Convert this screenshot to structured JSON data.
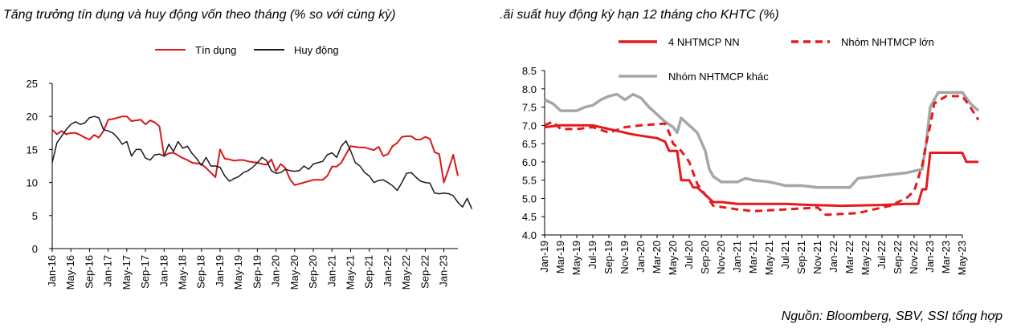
{
  "source": "Nguồn:  Bloomberg, SBV, SSI tổng hợp",
  "chart_data": [
    {
      "type": "line",
      "title": "Tăng trưởng tín dụng và huy động vốn theo tháng (% so với cùng kỳ)",
      "ylim": [
        0,
        25
      ],
      "yticks": [
        "0",
        "5",
        "10",
        "15",
        "20",
        "25"
      ],
      "x_tick_labels": [
        "Jan-16",
        "May-16",
        "Sep-16",
        "Jan-17",
        "May-17",
        "Sep-17",
        "Jan-18",
        "May-18",
        "Sep-18",
        "Jan-19",
        "May-19",
        "Sep-19",
        "Jan-20",
        "May-20",
        "Sep-20",
        "Jan-21",
        "May-21",
        "Sep-21",
        "Jan-22",
        "May-22",
        "Sep-22",
        "Jan-23"
      ],
      "x_start": "Jan-16",
      "legend_position": "top-right",
      "series": [
        {
          "name": "Tín dụng",
          "color": "#d7191c",
          "values": [
            18,
            17.3,
            17.8,
            17.3,
            17.5,
            17.5,
            17.2,
            16.8,
            16.5,
            17.2,
            16.8,
            17.8,
            19.5,
            19.6,
            19.8,
            20,
            20,
            19.3,
            19.4,
            19.5,
            18.8,
            19.4,
            19.1,
            18.5,
            14,
            14.4,
            14.5,
            14.1,
            13.7,
            13.4,
            13,
            12.9,
            12.8,
            12.2,
            11.5,
            10.8,
            15,
            13.6,
            13.5,
            13.3,
            13.4,
            13.4,
            13.2,
            13.1,
            13,
            12.8,
            12.7,
            13.5,
            11.7,
            12.8,
            12.2,
            10.5,
            9.6,
            9.8,
            10,
            10.2,
            10.4,
            10.4,
            10.4,
            11,
            12.4,
            12.4,
            13,
            14.3,
            15.5,
            15.4,
            15.3,
            15.3,
            15.1,
            14.9,
            15.4,
            14,
            14.3,
            15.5,
            16,
            16.9,
            17,
            17,
            16.5,
            16.5,
            16.9,
            16.6,
            14.6,
            14.3,
            10,
            12,
            14.2,
            11
          ]
        },
        {
          "name": "Huy động",
          "color": "#1a1a1a",
          "values": [
            13,
            16,
            17,
            18,
            18.8,
            19.2,
            18.8,
            19,
            19.8,
            20,
            19.8,
            18,
            17.8,
            17.5,
            16.8,
            15.8,
            16.2,
            14,
            15,
            15,
            13.7,
            13.4,
            14.2,
            14.3,
            14,
            15.8,
            14.7,
            16.2,
            15.2,
            15.5,
            14.4,
            13.6,
            12.6,
            13.8,
            12.5,
            12.5,
            12.3,
            11,
            10.2,
            10.6,
            10.9,
            11.5,
            11.8,
            12.3,
            13,
            13.8,
            13.3,
            11.8,
            11.4,
            11.5,
            12,
            11.8,
            11.7,
            11.8,
            12.5,
            12,
            12.8,
            13,
            13.2,
            14.2,
            14.5,
            13.8,
            15.5,
            16.3,
            14.8,
            13,
            12.5,
            11.5,
            11,
            10,
            10.3,
            10.4,
            10,
            9.5,
            8.8,
            10,
            11.4,
            11.5,
            10.8,
            10.2,
            10,
            9.9,
            8.4,
            8.3,
            8.4,
            8.3,
            8,
            7,
            6.3,
            7.6,
            6
          ]
        }
      ]
    },
    {
      "type": "line",
      "title": ".ãi suất huy động kỳ hạn 12 tháng cho KHTC (%)",
      "ylim": [
        4.0,
        8.5
      ],
      "yticks": [
        "4.0",
        "4.5",
        "5.0",
        "5.5",
        "6.0",
        "6.5",
        "7.0",
        "7.5",
        "8.0",
        "8.5"
      ],
      "x_tick_labels": [
        "Jan-19",
        "Mar-19",
        "May-19",
        "Jul-19",
        "Sep-19",
        "Nov-19",
        "Jan-20",
        "Mar-20",
        "May-20",
        "Jul-20",
        "Sep-20",
        "Nov-20",
        "Jan-21",
        "Mar-21",
        "May-21",
        "Jul-21",
        "Sep-21",
        "Nov-21",
        "Jan-22",
        "Mar-22",
        "May-22",
        "Jul-22",
        "Sep-22",
        "Nov-22",
        "Jan-23",
        "Mar-23",
        "May-23"
      ],
      "x_start": "Jan-19",
      "legend_position": "top",
      "series": [
        {
          "name": "4 NHTMCP NN",
          "color": "#e41a1c",
          "style": "solid",
          "points": [
            [
              0,
              6.95
            ],
            [
              2,
              7.0
            ],
            [
              6,
              7.0
            ],
            [
              9,
              6.85
            ],
            [
              11,
              6.75
            ],
            [
              14,
              6.65
            ],
            [
              15,
              6.55
            ],
            [
              15.5,
              6.3
            ],
            [
              16.5,
              6.3
            ],
            [
              17,
              5.5
            ],
            [
              18,
              5.5
            ],
            [
              18.5,
              5.3
            ],
            [
              19,
              5.3
            ],
            [
              20,
              5.1
            ],
            [
              21,
              4.9
            ],
            [
              22,
              4.9
            ],
            [
              24,
              4.85
            ],
            [
              30,
              4.85
            ],
            [
              33,
              4.82
            ],
            [
              37,
              4.8
            ],
            [
              42,
              4.82
            ],
            [
              45,
              4.85
            ],
            [
              46.5,
              4.85
            ],
            [
              47,
              5.25
            ],
            [
              47.5,
              5.25
            ],
            [
              48,
              6.25
            ],
            [
              52,
              6.25
            ],
            [
              52.5,
              6.0
            ],
            [
              53,
              6.0
            ],
            [
              54,
              6.0
            ]
          ]
        },
        {
          "name": "Nhóm NHTMCP lớn",
          "color": "#e41a1c",
          "style": "dashed",
          "points": [
            [
              0,
              7.0
            ],
            [
              1,
              7.1
            ],
            [
              2,
              6.9
            ],
            [
              4,
              6.9
            ],
            [
              6,
              6.95
            ],
            [
              8,
              6.8
            ],
            [
              10,
              6.95
            ],
            [
              12,
              7.0
            ],
            [
              15,
              7.05
            ],
            [
              15.5,
              6.8
            ],
            [
              16,
              6.5
            ],
            [
              17,
              6.3
            ],
            [
              18,
              6.0
            ],
            [
              19,
              5.4
            ],
            [
              20,
              5.1
            ],
            [
              21,
              4.8
            ],
            [
              24,
              4.7
            ],
            [
              26,
              4.65
            ],
            [
              30,
              4.7
            ],
            [
              34,
              4.75
            ],
            [
              35,
              4.55
            ],
            [
              39,
              4.6
            ],
            [
              41,
              4.7
            ],
            [
              43,
              4.8
            ],
            [
              45,
              5.0
            ],
            [
              46,
              5.2
            ],
            [
              47,
              5.9
            ],
            [
              47.5,
              6.5
            ],
            [
              48,
              7.0
            ],
            [
              48.5,
              7.6
            ],
            [
              50,
              7.8
            ],
            [
              52,
              7.8
            ],
            [
              53,
              7.5
            ],
            [
              54,
              7.15
            ]
          ]
        },
        {
          "name": "Nhóm NHTMCP khác",
          "color": "#a6a6a6",
          "style": "solid",
          "points": [
            [
              0,
              7.7
            ],
            [
              1,
              7.6
            ],
            [
              2,
              7.4
            ],
            [
              4,
              7.4
            ],
            [
              5,
              7.5
            ],
            [
              6,
              7.55
            ],
            [
              7,
              7.7
            ],
            [
              8,
              7.8
            ],
            [
              9,
              7.85
            ],
            [
              10,
              7.7
            ],
            [
              11,
              7.85
            ],
            [
              12,
              7.75
            ],
            [
              13,
              7.5
            ],
            [
              14,
              7.3
            ],
            [
              15,
              7.1
            ],
            [
              16,
              6.95
            ],
            [
              16.5,
              6.8
            ],
            [
              17,
              7.2
            ],
            [
              18,
              7.0
            ],
            [
              19,
              6.8
            ],
            [
              20,
              6.3
            ],
            [
              20.5,
              5.8
            ],
            [
              21,
              5.6
            ],
            [
              22,
              5.45
            ],
            [
              24,
              5.45
            ],
            [
              25,
              5.55
            ],
            [
              26,
              5.5
            ],
            [
              28,
              5.45
            ],
            [
              29,
              5.4
            ],
            [
              30,
              5.35
            ],
            [
              32,
              5.35
            ],
            [
              34,
              5.3
            ],
            [
              38,
              5.3
            ],
            [
              39,
              5.55
            ],
            [
              41,
              5.6
            ],
            [
              43,
              5.65
            ],
            [
              45,
              5.7
            ],
            [
              46,
              5.75
            ],
            [
              47,
              5.8
            ],
            [
              47.5,
              6.5
            ],
            [
              48,
              7.5
            ],
            [
              49,
              7.9
            ],
            [
              52,
              7.9
            ],
            [
              53,
              7.6
            ],
            [
              54,
              7.4
            ]
          ]
        }
      ]
    }
  ]
}
